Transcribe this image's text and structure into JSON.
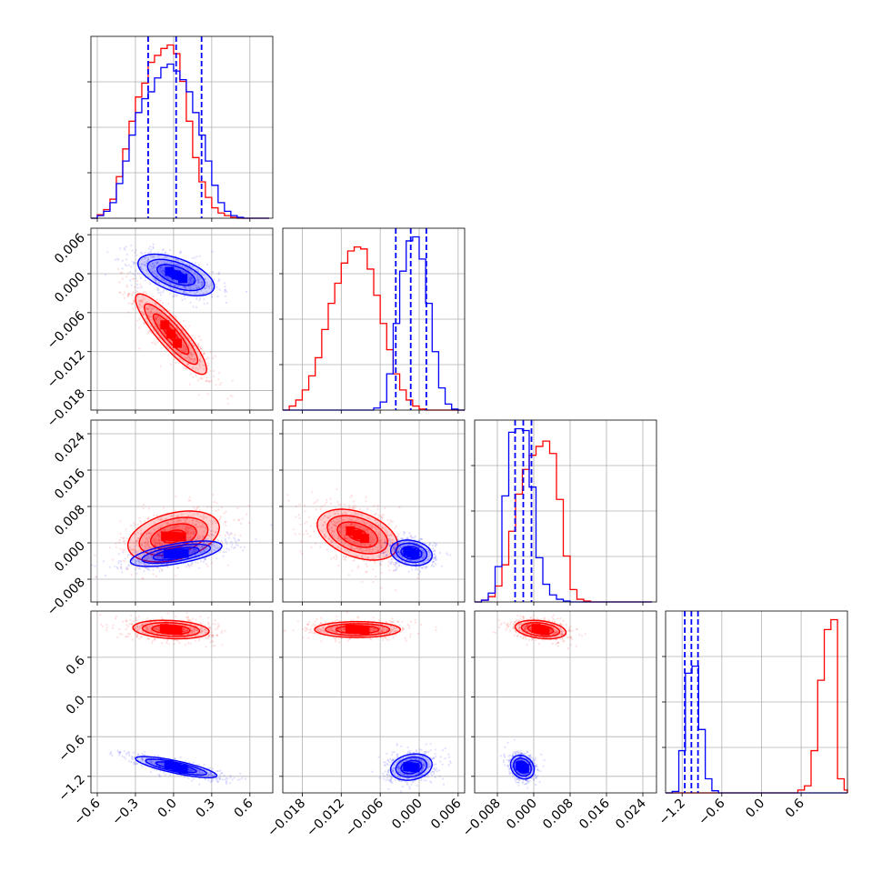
{
  "colors": {
    "series_a": "#ff0000",
    "series_b": "#0000ff"
  },
  "chart_data": {
    "type": "corner",
    "parameters": [
      {
        "range": [
          -0.65,
          0.78
        ],
        "ticks": [
          -0.6,
          -0.3,
          0.0,
          0.3,
          0.6
        ],
        "tick_labels": [
          "−0.6",
          "−0.3",
          "0.0",
          "0.3",
          "0.6"
        ]
      },
      {
        "range": [
          -0.021,
          0.007
        ],
        "ticks": [
          -0.018,
          -0.012,
          -0.006,
          0.0,
          0.006
        ],
        "tick_labels": [
          "−0.018",
          "−0.012",
          "−0.006",
          "0.000",
          "0.006"
        ]
      },
      {
        "range": [
          -0.013,
          0.027
        ],
        "ticks": [
          -0.008,
          0.0,
          0.008,
          0.016,
          0.024
        ],
        "tick_labels": [
          "−0.008",
          "0.000",
          "0.008",
          "0.016",
          "0.024"
        ]
      },
      {
        "range": [
          -1.45,
          1.3
        ],
        "ticks": [
          -1.2,
          -0.6,
          0.0,
          0.6
        ],
        "tick_labels": [
          "−1.2",
          "−0.6",
          "0.0",
          "0.6"
        ]
      }
    ],
    "histograms": [
      {
        "param": 0,
        "quantiles_b": [
          -0.2,
          0.02,
          0.22
        ],
        "series": [
          {
            "name": "",
            "color": "#ff0000",
            "bins": [
              -0.65,
              -0.6,
              -0.55,
              -0.5,
              -0.45,
              -0.4,
              -0.35,
              -0.3,
              -0.25,
              -0.2,
              -0.15,
              -0.1,
              -0.05,
              0.0,
              0.05,
              0.1,
              0.15,
              0.2,
              0.25,
              0.3,
              0.35,
              0.4,
              0.45,
              0.5,
              0.55,
              0.6,
              0.65,
              0.7,
              0.75
            ],
            "counts": [
              0,
              4,
              10,
              22,
              48,
              80,
              112,
              140,
              156,
              180,
              188,
              196,
              200,
              190,
              158,
              112,
              70,
              42,
              24,
              12,
              6,
              3,
              1,
              0,
              0,
              0,
              0,
              0
            ]
          },
          {
            "name": "",
            "color": "#0000ff",
            "bins": [
              -0.65,
              -0.6,
              -0.55,
              -0.5,
              -0.45,
              -0.4,
              -0.35,
              -0.3,
              -0.25,
              -0.2,
              -0.15,
              -0.1,
              -0.05,
              0.0,
              0.05,
              0.1,
              0.15,
              0.2,
              0.25,
              0.3,
              0.35,
              0.4,
              0.45,
              0.5,
              0.55,
              0.6,
              0.65,
              0.7,
              0.75
            ],
            "counts": [
              0,
              3,
              8,
              18,
              40,
              66,
              96,
              122,
              138,
              146,
              162,
              174,
              178,
              170,
              160,
              146,
              122,
              96,
              66,
              38,
              18,
              8,
              3,
              1,
              0,
              0,
              0,
              0
            ]
          }
        ]
      },
      {
        "param": 1,
        "quantiles_b": [
          -0.0036,
          -0.0013,
          0.0011
        ],
        "series": [
          {
            "name": "",
            "color": "#ff0000",
            "bins": [
              -0.021,
              -0.02,
              -0.019,
              -0.018,
              -0.017,
              -0.016,
              -0.015,
              -0.014,
              -0.013,
              -0.012,
              -0.011,
              -0.01,
              -0.009,
              -0.008,
              -0.007,
              -0.006,
              -0.005,
              -0.004,
              -0.003,
              -0.002,
              -0.001,
              0.0,
              0.001,
              0.002,
              0.003,
              0.004,
              0.005,
              0.006,
              0.007
            ],
            "counts": [
              0,
              4,
              10,
              20,
              34,
              52,
              80,
              106,
              126,
              146,
              158,
              162,
              160,
              140,
              114,
              86,
              60,
              36,
              20,
              10,
              4,
              1,
              0,
              0,
              0,
              0,
              0,
              0
            ]
          },
          {
            "name": "",
            "color": "#0000ff",
            "bins": [
              -0.021,
              -0.02,
              -0.019,
              -0.018,
              -0.017,
              -0.016,
              -0.015,
              -0.014,
              -0.013,
              -0.012,
              -0.011,
              -0.01,
              -0.009,
              -0.008,
              -0.007,
              -0.006,
              -0.005,
              -0.004,
              -0.003,
              -0.002,
              -0.001,
              0.0,
              0.001,
              0.002,
              0.003,
              0.004,
              0.005,
              0.006,
              0.007
            ],
            "counts": [
              0,
              0,
              0,
              0,
              0,
              0,
              0,
              0,
              0,
              0,
              0,
              0,
              0,
              0,
              2,
              8,
              36,
              86,
              138,
              168,
              172,
              150,
              106,
              58,
              22,
              6,
              1,
              0
            ]
          }
        ]
      },
      {
        "param": 2,
        "quantiles_b": [
          -0.0041,
          -0.0023,
          -0.0005
        ],
        "series": [
          {
            "name": "",
            "color": "#ff0000",
            "bins": [
              -0.013,
              -0.0115,
              -0.01,
              -0.0085,
              -0.007,
              -0.0055,
              -0.004,
              -0.0025,
              -0.001,
              0.0005,
              0.002,
              0.0035,
              0.005,
              0.0065,
              0.008,
              0.0095,
              0.011,
              0.0125,
              0.014,
              0.0155,
              0.017,
              0.0185,
              0.02,
              0.0215,
              0.023,
              0.0245,
              0.026
            ],
            "counts": [
              0,
              2,
              6,
              18,
              42,
              80,
              122,
              150,
              166,
              176,
              182,
              168,
              116,
              52,
              14,
              3,
              1,
              0,
              0,
              0,
              0,
              0,
              0,
              0,
              0,
              0
            ]
          },
          {
            "name": "",
            "color": "#0000ff",
            "bins": [
              -0.013,
              -0.0115,
              -0.01,
              -0.0085,
              -0.007,
              -0.0055,
              -0.004,
              -0.0025,
              -0.001,
              0.0005,
              0.002,
              0.0035,
              0.005,
              0.0065,
              0.008,
              0.0095,
              0.011,
              0.0125,
              0.014,
              0.0155,
              0.017,
              0.0185,
              0.02,
              0.0215,
              0.023,
              0.0245,
              0.026
            ],
            "counts": [
              0,
              2,
              10,
              40,
              120,
              192,
              196,
              194,
              130,
              50,
              20,
              8,
              3,
              1,
              0,
              0,
              0,
              0,
              0,
              0,
              0,
              0,
              0,
              0,
              0,
              0
            ]
          }
        ]
      },
      {
        "param": 3,
        "quantiles_b": [
          -1.16,
          -1.06,
          -0.96
        ],
        "series": [
          {
            "name": "",
            "color": "#ff0000",
            "bins": [
              -1.45,
              -1.35,
              -1.25,
              -1.15,
              -1.05,
              -0.95,
              -0.85,
              -0.75,
              -0.65,
              -0.55,
              -0.45,
              -0.35,
              -0.25,
              -0.15,
              -0.05,
              0.05,
              0.15,
              0.25,
              0.35,
              0.45,
              0.55,
              0.65,
              0.75,
              0.85,
              0.95,
              1.05,
              1.15,
              1.25,
              1.3
            ],
            "counts": [
              0,
              0,
              0,
              0,
              0,
              0,
              0,
              0,
              0,
              0,
              0,
              0,
              0,
              0,
              0,
              0,
              0,
              0,
              0,
              0,
              4,
              10,
              60,
              160,
              232,
              246,
              20,
              4
            ]
          },
          {
            "name": "",
            "color": "#0000ff",
            "bins": [
              -1.45,
              -1.35,
              -1.25,
              -1.15,
              -1.05,
              -0.95,
              -0.85,
              -0.75,
              -0.65,
              -0.55,
              -0.45,
              -0.35,
              -0.25,
              -0.15,
              -0.05,
              0.05,
              0.15,
              0.25,
              0.35,
              0.45,
              0.55,
              0.65,
              0.75,
              0.85,
              0.95,
              1.05,
              1.15,
              1.25,
              1.3
            ],
            "counts": [
              0,
              2,
              60,
              170,
              180,
              90,
              20,
              3,
              0,
              0,
              0,
              0,
              0,
              0,
              0,
              0,
              0,
              0,
              0,
              0,
              0,
              0,
              0,
              0,
              0,
              0,
              0,
              0
            ]
          }
        ]
      }
    ],
    "joint": [
      {
        "x": 0,
        "y": 1,
        "red": {
          "mean": [
            -0.02,
            -0.0093
          ],
          "sd": [
            0.14,
            0.0031
          ],
          "rho": -0.88
        },
        "blue": {
          "mean": [
            0.02,
            -0.0002
          ],
          "sd": [
            0.15,
            0.0016
          ],
          "rho": -0.55
        }
      },
      {
        "x": 0,
        "y": 2,
        "red": {
          "mean": [
            0.0,
            0.0014
          ],
          "sd": [
            0.18,
            0.0028
          ],
          "rho": 0.35
        },
        "blue": {
          "mean": [
            0.02,
            -0.0024
          ],
          "sd": [
            0.18,
            0.0014
          ],
          "rho": 0.6
        }
      },
      {
        "x": 1,
        "y": 2,
        "red": {
          "mean": [
            -0.0095,
            0.0018
          ],
          "sd": [
            0.0031,
            0.0028
          ],
          "rho": -0.4
        },
        "blue": {
          "mean": [
            -0.0012,
            -0.0022
          ],
          "sd": [
            0.0016,
            0.0014
          ],
          "rho": -0.2
        }
      },
      {
        "x": 0,
        "y": 3,
        "red": {
          "mean": [
            -0.02,
            1.02
          ],
          "sd": [
            0.15,
            0.07
          ],
          "rho": -0.2
        },
        "blue": {
          "mean": [
            0.02,
            -1.06
          ],
          "sd": [
            0.16,
            0.08
          ],
          "rho": -0.8
        }
      },
      {
        "x": 1,
        "y": 3,
        "red": {
          "mean": [
            -0.0095,
            1.02
          ],
          "sd": [
            0.0033,
            0.06
          ],
          "rho": 0.0
        },
        "blue": {
          "mean": [
            -0.0012,
            -1.06
          ],
          "sd": [
            0.0016,
            0.1
          ],
          "rho": 0.2
        }
      },
      {
        "x": 2,
        "y": 3,
        "red": {
          "mean": [
            0.0015,
            1.02
          ],
          "sd": [
            0.0028,
            0.07
          ],
          "rho": -0.3
        },
        "blue": {
          "mean": [
            -0.0025,
            -1.06
          ],
          "sd": [
            0.0013,
            0.09
          ],
          "rho": -0.2
        }
      }
    ],
    "grid": true
  }
}
